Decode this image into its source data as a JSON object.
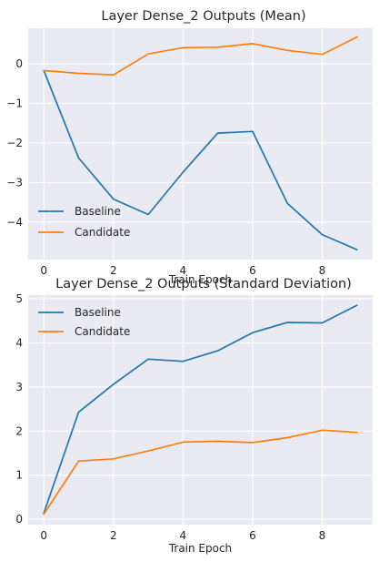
{
  "chart_data": [
    {
      "type": "line",
      "title": "Layer Dense_2 Outputs (Mean)",
      "xlabel": "Train Epoch",
      "ylabel": "",
      "x": [
        0,
        1,
        2,
        3,
        4,
        5,
        6,
        7,
        8,
        9
      ],
      "xlim": [
        -0.45,
        9.45
      ],
      "ylim": [
        -4.95,
        0.9
      ],
      "xticks": [
        0,
        2,
        4,
        6,
        8
      ],
      "yticks": [
        -4,
        -3,
        -2,
        -1,
        0
      ],
      "ytick_labels": [
        "−4",
        "−3",
        "−2",
        "−1",
        "0"
      ],
      "grid": true,
      "legend": "lower-left",
      "series": [
        {
          "name": "Baseline",
          "color": "#1f77b4",
          "values": [
            -0.17,
            -2.38,
            -3.42,
            -3.81,
            -2.74,
            -1.75,
            -1.71,
            -3.53,
            -4.32,
            -4.7
          ]
        },
        {
          "name": "Candidate",
          "color": "#ff7f0e",
          "values": [
            -0.17,
            -0.24,
            -0.28,
            0.25,
            0.41,
            0.42,
            0.51,
            0.34,
            0.24,
            0.68
          ]
        }
      ]
    },
    {
      "type": "line",
      "title": "Layer Dense_2 Outputs (Standard Deviation)",
      "xlabel": "Train Epoch",
      "ylabel": "",
      "x": [
        0,
        1,
        2,
        3,
        4,
        5,
        6,
        7,
        8,
        9
      ],
      "xlim": [
        -0.45,
        9.45
      ],
      "ylim": [
        -0.12,
        5.08
      ],
      "xticks": [
        0,
        2,
        4,
        6,
        8
      ],
      "yticks": [
        0,
        1,
        2,
        3,
        4,
        5
      ],
      "ytick_labels": [
        "0",
        "1",
        "2",
        "3",
        "4",
        "5"
      ],
      "grid": true,
      "legend": "upper-left",
      "series": [
        {
          "name": "Baseline",
          "color": "#1f77b4",
          "values": [
            0.14,
            2.43,
            3.06,
            3.63,
            3.58,
            3.82,
            4.23,
            4.46,
            4.45,
            4.85
          ]
        },
        {
          "name": "Candidate",
          "color": "#ff7f0e",
          "values": [
            0.12,
            1.32,
            1.37,
            1.55,
            1.75,
            1.77,
            1.74,
            1.85,
            2.02,
            1.97
          ]
        }
      ]
    }
  ]
}
